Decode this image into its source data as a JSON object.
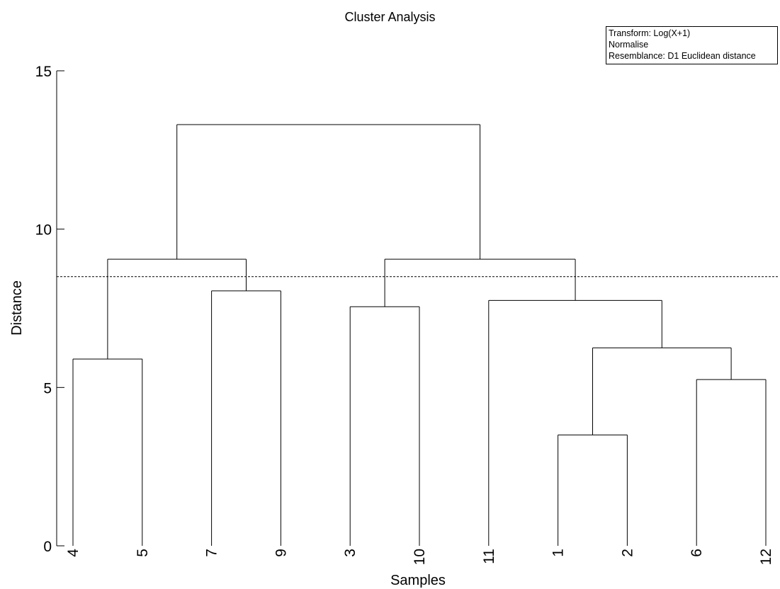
{
  "chart_data": {
    "type": "dendrogram",
    "title": "Cluster Analysis",
    "xlabel": "Samples",
    "ylabel": "Distance",
    "ylim": [
      0,
      15
    ],
    "yticks": [
      0,
      5,
      10,
      15
    ],
    "leaf_order": [
      "4",
      "5",
      "7",
      "9",
      "3",
      "10",
      "11",
      "1",
      "2",
      "6",
      "12"
    ],
    "merges": [
      {
        "id": "m1",
        "children": [
          "1",
          "2"
        ],
        "height": 3.5
      },
      {
        "id": "m2",
        "children": [
          "6",
          "12"
        ],
        "height": 5.25
      },
      {
        "id": "m3",
        "children": [
          "4",
          "5"
        ],
        "height": 5.9
      },
      {
        "id": "m4",
        "children": [
          "m1",
          "m2"
        ],
        "height": 6.25
      },
      {
        "id": "m5",
        "children": [
          "3",
          "10"
        ],
        "height": 7.55
      },
      {
        "id": "m6",
        "children": [
          "11",
          "m4"
        ],
        "height": 7.75
      },
      {
        "id": "m7",
        "children": [
          "7",
          "9"
        ],
        "height": 8.05
      },
      {
        "id": "m8",
        "children": [
          "m3",
          "m7"
        ],
        "height": 9.05
      },
      {
        "id": "m9",
        "children": [
          "m5",
          "m6"
        ],
        "height": 9.05
      },
      {
        "id": "m10",
        "children": [
          "m8",
          "m9"
        ],
        "height": 13.3
      }
    ],
    "cut_line": 8.5,
    "grid": false,
    "legend_placement": "top-right",
    "legend": [
      "Transform: Log(X+1)",
      "Normalise",
      "Resemblance: D1 Euclidean distance"
    ]
  }
}
